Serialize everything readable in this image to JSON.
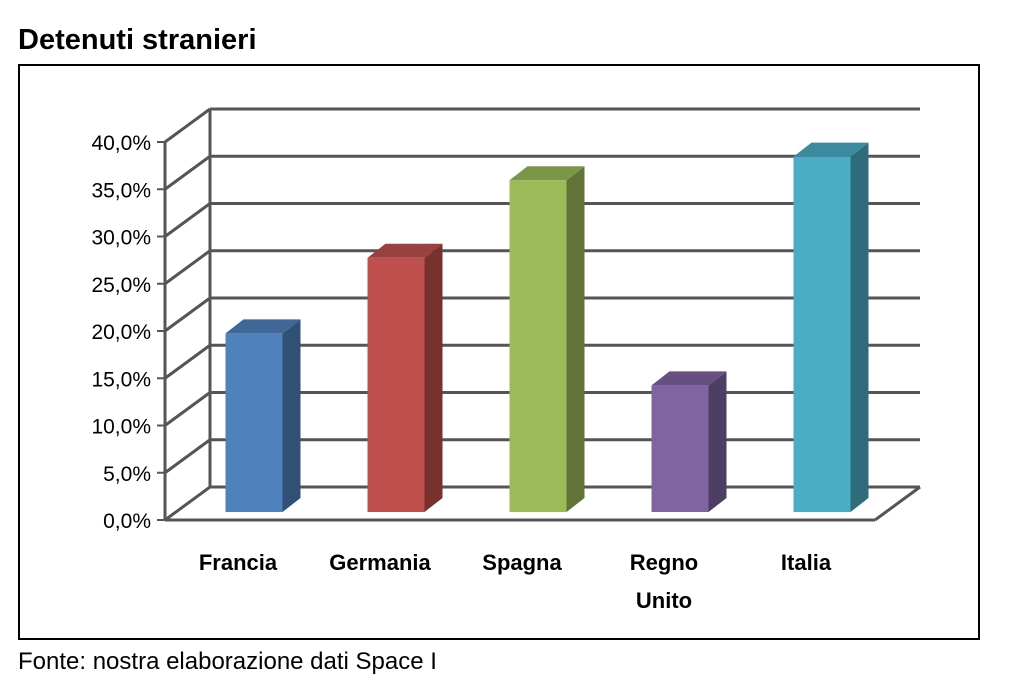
{
  "chart_data": {
    "type": "bar",
    "title": "Detenuti stranieri",
    "categories": [
      [
        "Francia"
      ],
      [
        "Germania"
      ],
      [
        "Spagna"
      ],
      [
        "Regno",
        "Unito"
      ],
      [
        "Italia"
      ]
    ],
    "values": [
      18.0,
      26.0,
      34.2,
      12.5,
      36.7
    ],
    "colors": [
      "#4f81bd",
      "#c0504d",
      "#9bbb59",
      "#8064a2",
      "#4bacc6"
    ],
    "ylim": [
      0,
      40
    ],
    "yticks": [
      "0,0%",
      "5,0%",
      "10,0%",
      "15,0%",
      "20,0%",
      "25,0%",
      "30,0%",
      "35,0%",
      "40,0%"
    ],
    "grid": true,
    "style": "3d-column"
  },
  "source_note": "Fonte: nostra elaborazione dati Space I"
}
